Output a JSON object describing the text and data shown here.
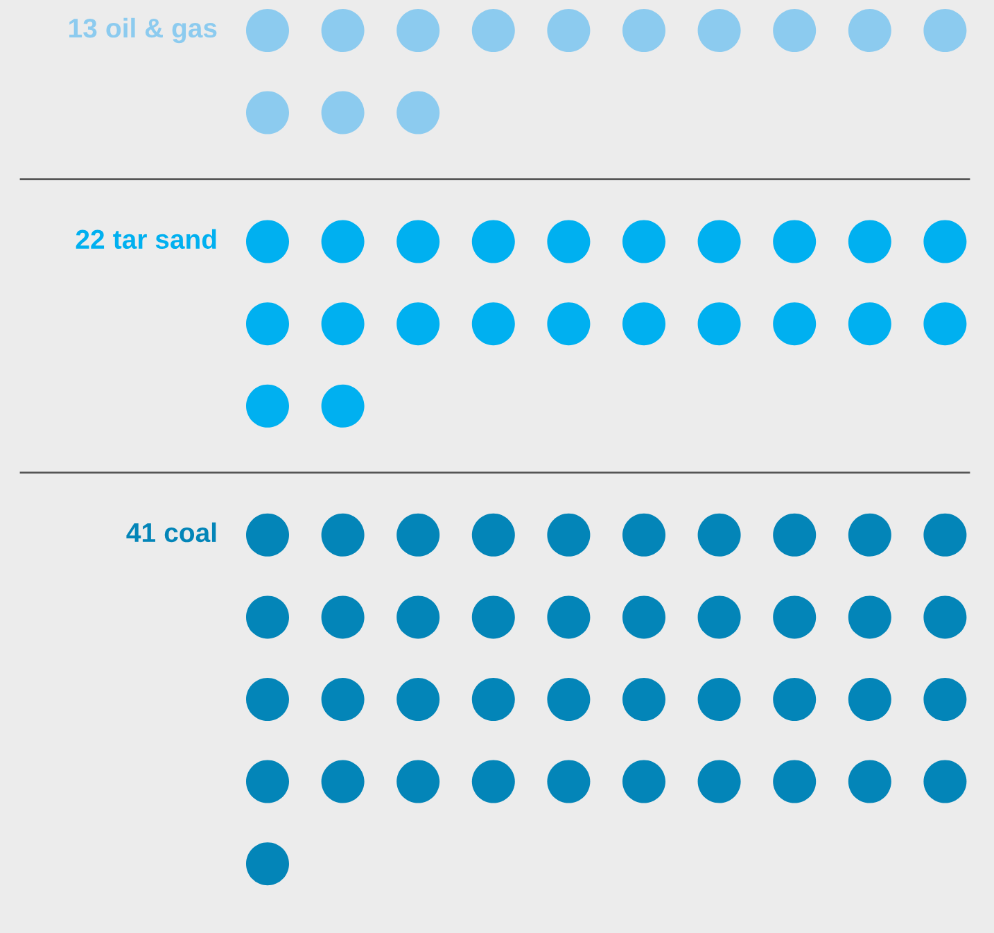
{
  "chart_data": {
    "type": "other",
    "categories": [
      "oil & gas",
      "tar sand",
      "coal"
    ],
    "values": [
      13,
      22,
      41
    ],
    "colors": [
      "#8ccbef",
      "#00b0f0",
      "#0385b8"
    ],
    "data_labels": true
  }
}
